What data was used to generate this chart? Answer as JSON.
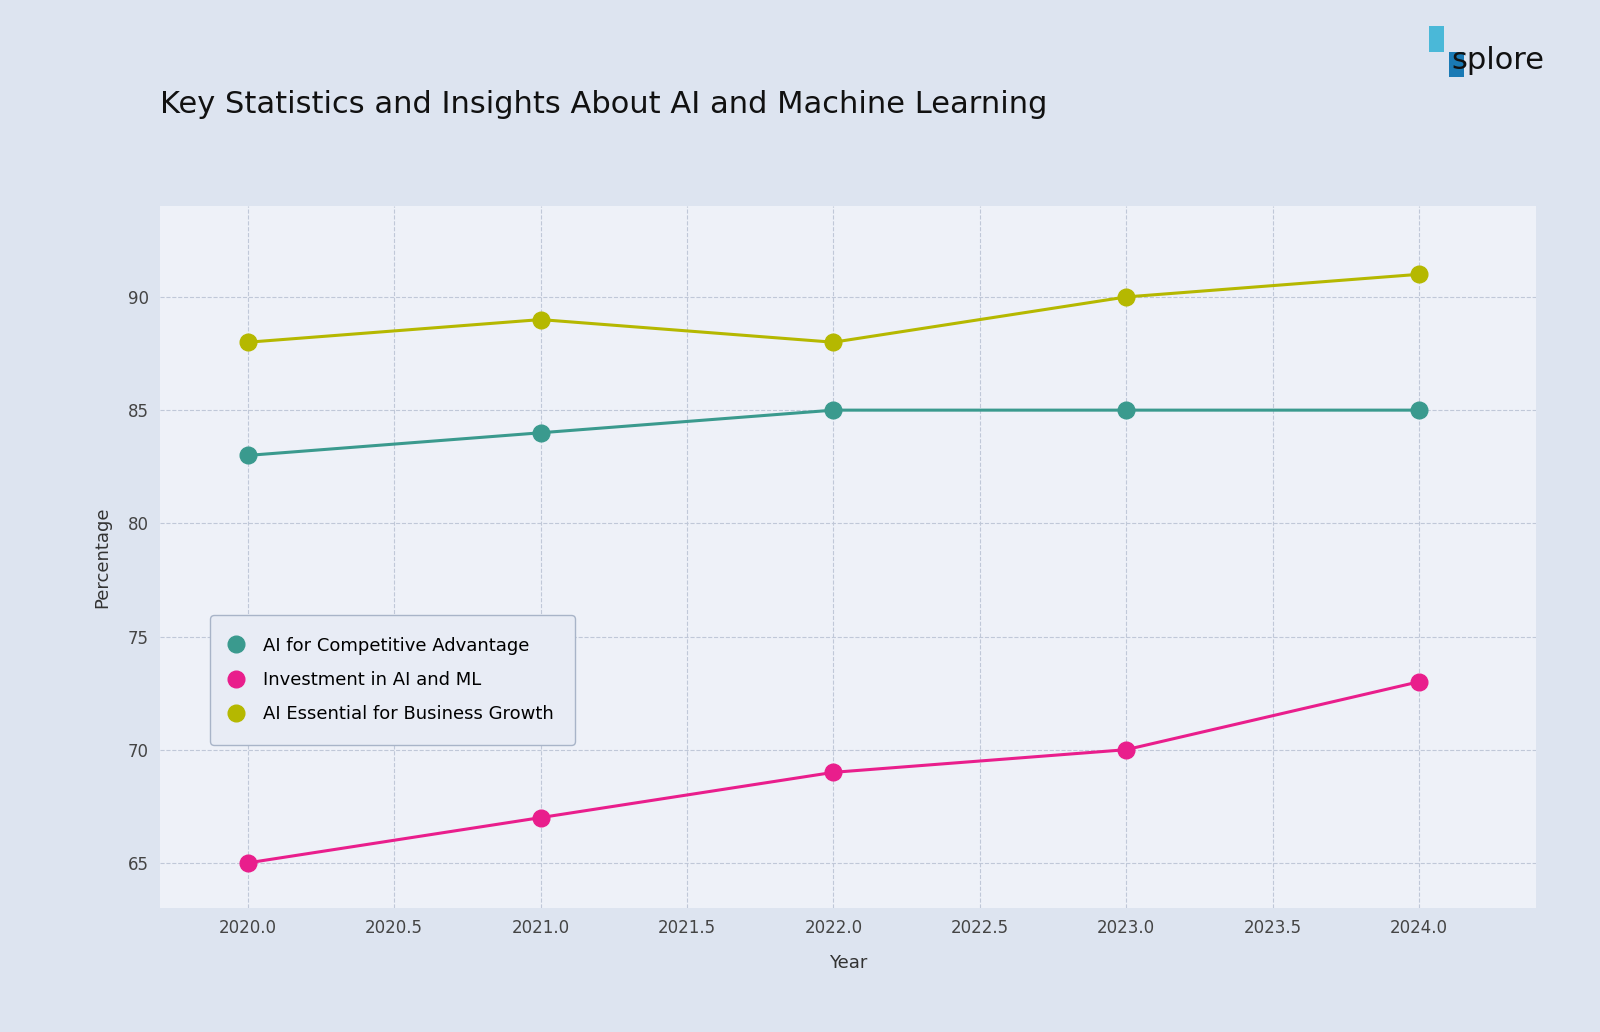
{
  "title": "Key Statistics and Insights About AI and Machine Learning",
  "xlabel": "Year",
  "ylabel": "Percentage",
  "background_color": "#dde4f0",
  "plot_bg_color": "#eef1f8",
  "years": [
    2020,
    2021,
    2022,
    2023,
    2024
  ],
  "series": [
    {
      "name": "AI for Competitive Advantage",
      "color": "#3a9a8e",
      "values": [
        83,
        84,
        85,
        85,
        85
      ]
    },
    {
      "name": "Investment in AI and ML",
      "color": "#e91e8c",
      "values": [
        65,
        67,
        69,
        70,
        73
      ]
    },
    {
      "name": "AI Essential for Business Growth",
      "color": "#b5b800",
      "values": [
        88,
        89,
        88,
        90,
        91
      ]
    }
  ],
  "ylim": [
    63,
    94
  ],
  "yticks": [
    65,
    70,
    75,
    80,
    85,
    90
  ],
  "xticks": [
    2020.0,
    2020.5,
    2021.0,
    2021.5,
    2022.0,
    2022.5,
    2023.0,
    2023.5,
    2024.0
  ],
  "xlim": [
    2019.7,
    2024.4
  ],
  "title_fontsize": 22,
  "axis_label_fontsize": 13,
  "tick_fontsize": 12,
  "legend_fontsize": 13,
  "marker_size": 12,
  "line_width": 2.2,
  "grid_color": "#c0c8d8",
  "legend_bg": "#e8ecf5",
  "legend_edge": "#a8b4c8",
  "splore_text_color": "#111111",
  "splore_icon_color1": "#4ab8d8",
  "splore_icon_color2": "#1a7ab5"
}
